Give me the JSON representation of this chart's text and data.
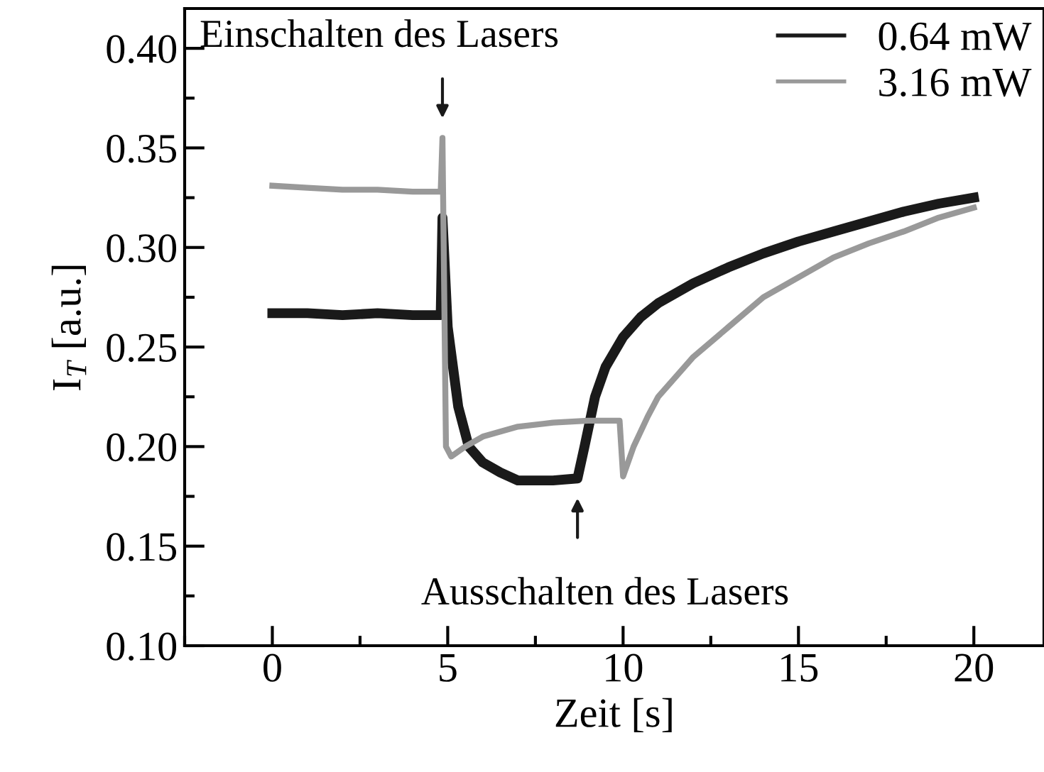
{
  "chart_data": {
    "type": "line",
    "xlabel": "Zeit [s]",
    "ylabel": "I$_{T}$ [a.u.]",
    "xlim": [
      -2.5,
      22
    ],
    "xticks": [
      0,
      5,
      10,
      15,
      20
    ],
    "ylim": [
      0.1,
      0.42
    ],
    "yticks": [
      {
        "value": 0.1,
        "label": "0.10"
      },
      {
        "value": 0.15,
        "label": "0.15"
      },
      {
        "value": 0.2,
        "label": "0.20"
      },
      {
        "value": 0.25,
        "label": "0.25"
      },
      {
        "value": 0.3,
        "label": "0.30"
      },
      {
        "value": 0.35,
        "label": "0.35"
      },
      {
        "value": 0.4,
        "label": "0.40"
      }
    ],
    "grid": false,
    "legend": "top right",
    "marker": "none",
    "line_style": "solid",
    "series": [
      {
        "name": "0.64 mW",
        "color": "#1a1a1a",
        "x": [
          0,
          1,
          2,
          3,
          4,
          4.8,
          4.85,
          5.0,
          5.3,
          5.6,
          6.0,
          6.5,
          7.0,
          8.0,
          8.7,
          8.9,
          9.2,
          9.5,
          10.0,
          10.5,
          11.0,
          12.0,
          13.0,
          14.0,
          15.0,
          16.0,
          17.0,
          18.0,
          19.0,
          20.0
        ],
        "values": [
          0.267,
          0.267,
          0.266,
          0.267,
          0.266,
          0.266,
          0.315,
          0.26,
          0.22,
          0.2,
          0.192,
          0.187,
          0.183,
          0.183,
          0.184,
          0.2,
          0.225,
          0.24,
          0.255,
          0.265,
          0.272,
          0.282,
          0.29,
          0.297,
          0.303,
          0.308,
          0.313,
          0.318,
          0.322,
          0.325
        ]
      },
      {
        "name": "3.16 mW",
        "color": "#999999",
        "x": [
          0,
          1,
          2,
          3,
          4,
          4.8,
          4.85,
          4.95,
          5.1,
          5.5,
          6.0,
          7.0,
          8.0,
          9.0,
          9.9,
          10.0,
          10.3,
          10.7,
          11.0,
          12.0,
          13.0,
          14.0,
          15.0,
          16.0,
          17.0,
          18.0,
          19.0,
          20.0
        ],
        "values": [
          0.331,
          0.33,
          0.329,
          0.329,
          0.328,
          0.328,
          0.355,
          0.2,
          0.195,
          0.2,
          0.205,
          0.21,
          0.212,
          0.213,
          0.213,
          0.185,
          0.2,
          0.215,
          0.225,
          0.245,
          0.26,
          0.275,
          0.285,
          0.295,
          0.302,
          0.308,
          0.315,
          0.32
        ]
      }
    ],
    "annotations": [
      {
        "text": "Einschalten des Lasers",
        "x": 4.85,
        "y": 0.355
      },
      {
        "text": "Ausschalten des Lasers",
        "x": 8.7,
        "y": 0.184
      }
    ]
  }
}
